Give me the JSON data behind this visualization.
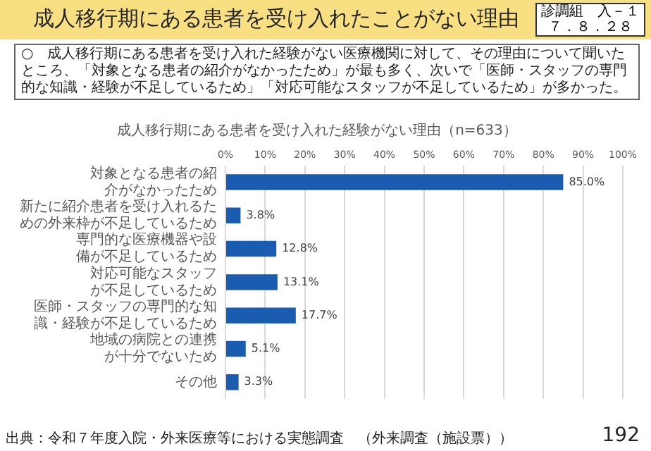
{
  "chart_data": {
    "type": "bar",
    "orientation": "horizontal",
    "title": "成人移行期にある患者を受け入れたことがない理由",
    "subtitle": "成人移行期にある患者を受け入れた経験がない理由（n=633）",
    "categories": [
      "対象となる患者の紹介がなかったため",
      "新たに紹介患者を受け入れるための外来枠が不足しているため",
      "専門的な医療機器や設備が不足しているため",
      "対応可能なスタッフが不足しているため",
      "医師・スタッフの専門的な知識・経験が不足しているため",
      "地域の病院との連携が十分でないため",
      "その他"
    ],
    "values": [
      85.0,
      3.8,
      12.8,
      13.1,
      17.7,
      5.1,
      3.3
    ],
    "value_labels": [
      "85.0%",
      "3.8%",
      "12.8%",
      "13.1%",
      "17.7%",
      "5.1%",
      "3.3%"
    ],
    "color": "#1a5cb0",
    "xlim": [
      0,
      100
    ],
    "xticks": [
      {
        "value": 0,
        "label": "0%"
      },
      {
        "value": 10,
        "label": "10%"
      },
      {
        "value": 20,
        "label": "20%"
      },
      {
        "value": 30,
        "label": "30%"
      },
      {
        "value": 40,
        "label": "40%"
      },
      {
        "value": 50,
        "label": "50%"
      },
      {
        "value": 60,
        "label": "60%"
      },
      {
        "value": 70,
        "label": "70%"
      },
      {
        "value": 80,
        "label": "80%"
      },
      {
        "value": 90,
        "label": "90%"
      },
      {
        "value": 100,
        "label": "100%"
      }
    ],
    "grid": "x",
    "legend": false,
    "annotations": [
      "○　成人移行期にある患者を受け入れた経験がない医療機関に対して、その理由について聞いたところ、「対象となる患者の紹介がなかったため」が最も多く、次いで「医師・スタッフの専門的な知識・経験が不足しているため」「対応可能なスタッフが不足しているため」が多かった。",
      "診調組　入－１",
      "７．８．２８",
      "出典：令和７年度入院・外来医療等における実態調査　（外来調査（施設票））",
      "192"
    ]
  }
}
